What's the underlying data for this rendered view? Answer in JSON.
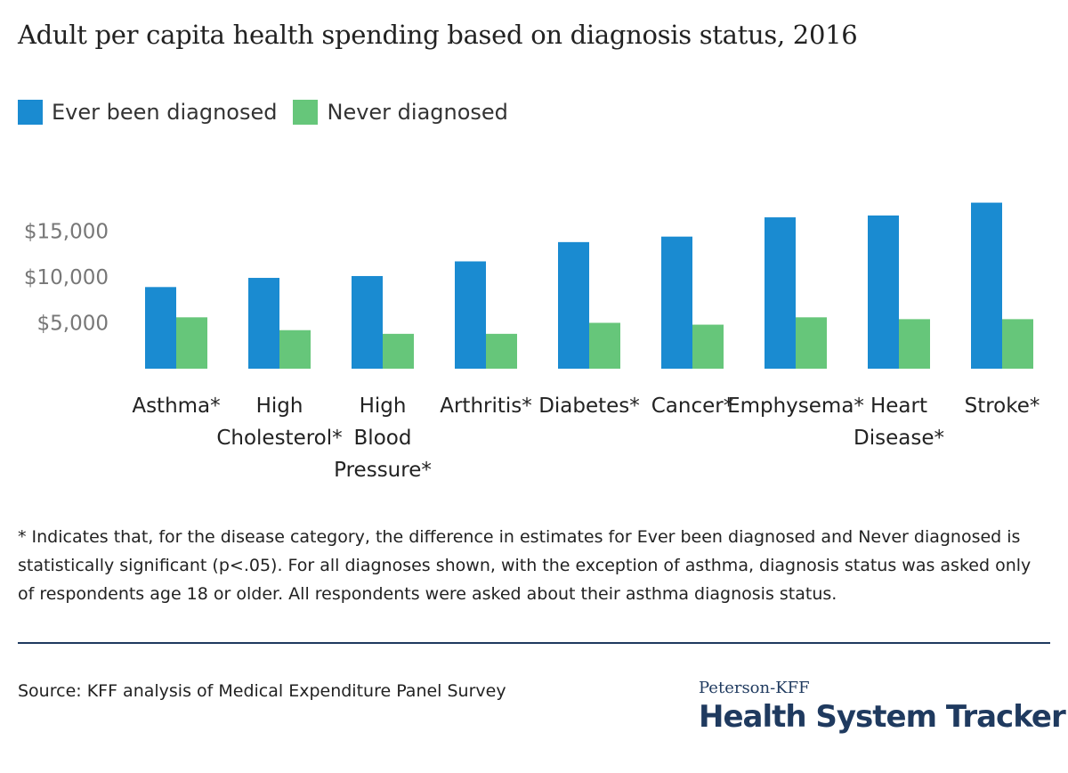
{
  "chart_data": {
    "type": "bar",
    "title": "Adult per capita health spending based on diagnosis status, 2016",
    "categories": [
      [
        "Asthma*"
      ],
      [
        "High",
        "Cholesterol*"
      ],
      [
        "High",
        "Blood",
        "Pressure*"
      ],
      [
        "Arthritis*"
      ],
      [
        "Diabetes*"
      ],
      [
        "Cancer*"
      ],
      [
        "Emphysema*"
      ],
      [
        "Heart",
        "Disease*"
      ],
      [
        "Stroke*"
      ]
    ],
    "series": [
      {
        "name": "Ever been diagnosed",
        "color": "#1a8bd1",
        "values": [
          8900,
          9900,
          10100,
          11700,
          13800,
          14400,
          16500,
          16700,
          18100
        ]
      },
      {
        "name": "Never diagnosed",
        "color": "#66c67a",
        "values": [
          5600,
          4200,
          3800,
          3800,
          5000,
          4800,
          5600,
          5400,
          5400
        ]
      }
    ],
    "yticks": [
      "$5,000",
      "$10,000",
      "$15,000"
    ],
    "ytick_values": [
      5000,
      10000,
      15000
    ],
    "ylim": [
      0,
      18500
    ],
    "grid": false,
    "legend": "top-left"
  },
  "footnote": "* Indicates that, for the disease category, the difference in estimates for Ever been diagnosed and Never diagnosed is statistically significant (p<.05). For all diagnoses shown, with the exception of asthma, diagnosis status was asked only of respondents age 18 or older. All respondents were asked about their asthma diagnosis status.",
  "source": "Source: KFF analysis of Medical Expenditure Panel Survey",
  "brand": {
    "top": "Peterson-KFF",
    "main": "Health System Tracker"
  }
}
